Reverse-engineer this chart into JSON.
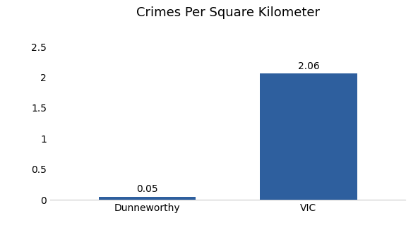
{
  "categories": [
    "Dunneworthy",
    "VIC"
  ],
  "values": [
    0.05,
    2.06
  ],
  "bar_colors": [
    "#2e5f9e",
    "#2e5f9e"
  ],
  "title": "Crimes Per Square Kilometer",
  "title_fontsize": 13,
  "ylim": [
    0,
    2.8
  ],
  "yticks": [
    0,
    0.5,
    1,
    1.5,
    2,
    2.5
  ],
  "bar_width": 0.6,
  "tick_fontsize": 10,
  "background_color": "#ffffff",
  "value_label_fontsize": 10
}
